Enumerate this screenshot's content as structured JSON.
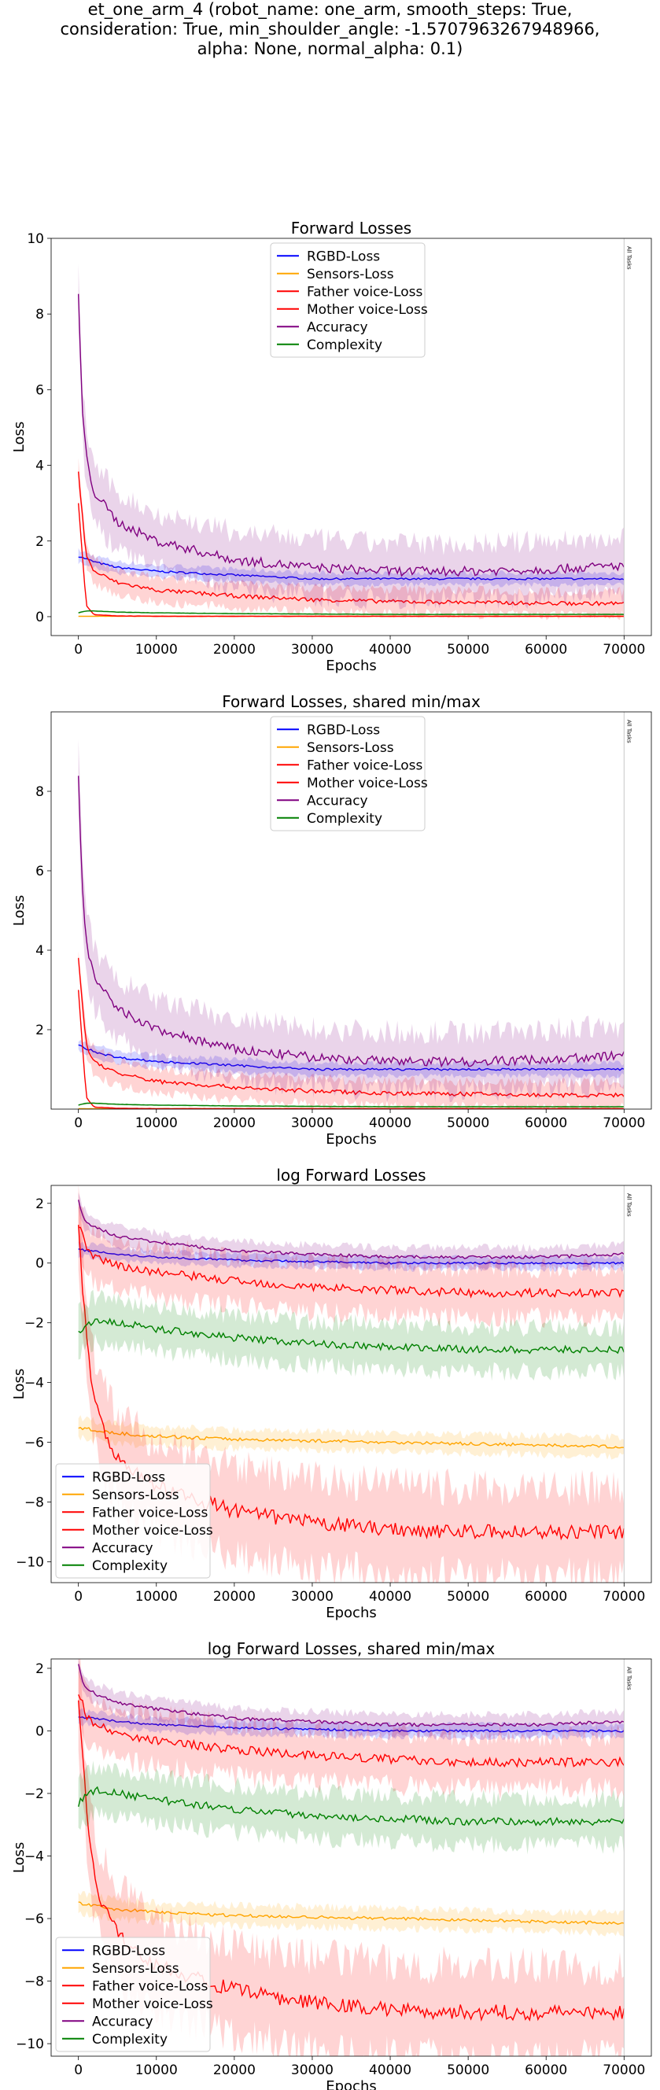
{
  "figure": {
    "suptitle_lines": [
      "et_one_arm_4 (robot_name: one_arm, smooth_steps: True,",
      "consideration: True, min_shoulder_angle: -1.5707963267948966,",
      "alpha: None, normal_alpha: 0.1)"
    ]
  },
  "series_styles": [
    {
      "name": "RGBD-Loss",
      "color": "#0000ff"
    },
    {
      "name": "Sensors-Loss",
      "color": "#ffa500"
    },
    {
      "name": "Father voice-Loss",
      "color": "#ff0000"
    },
    {
      "name": "Mother voice-Loss",
      "color": "#ff0000"
    },
    {
      "name": "Accuracy",
      "color": "#800080"
    },
    {
      "name": "Complexity",
      "color": "#008000"
    }
  ],
  "chart_data": [
    {
      "type": "line",
      "title": "Forward Losses",
      "xlabel": "Epochs",
      "ylabel": "Loss",
      "xlim": [
        -3500,
        73500
      ],
      "ylim": [
        -0.5,
        10
      ],
      "xticks": [
        0,
        10000,
        20000,
        30000,
        40000,
        50000,
        60000,
        70000
      ],
      "yticks": [
        0,
        2,
        4,
        6,
        8,
        10
      ],
      "legend": "upper-center",
      "vline": {
        "x": 70000,
        "label": "All Tasks"
      },
      "series": [
        {
          "name": "RGBD-Loss",
          "x": [
            0,
            2000,
            5000,
            10000,
            20000,
            30000,
            40000,
            50000,
            60000,
            70000
          ],
          "y": [
            1.6,
            1.45,
            1.3,
            1.2,
            1.1,
            1.0,
            1.0,
            1.0,
            1.0,
            1.0
          ],
          "band": 0.15
        },
        {
          "name": "Sensors-Loss",
          "x": [
            0,
            2000,
            5000,
            10000,
            20000,
            30000,
            40000,
            50000,
            60000,
            70000
          ],
          "y": [
            0.01,
            0.01,
            0.01,
            0.01,
            0.01,
            0.01,
            0.01,
            0.01,
            0.01,
            0.01
          ],
          "band": 0.01
        },
        {
          "name": "Father voice-Loss",
          "x": [
            0,
            1000,
            2000,
            5000,
            10000,
            20000,
            30000,
            40000,
            50000,
            60000,
            70000
          ],
          "y": [
            3.0,
            0.3,
            0.05,
            0.02,
            0.01,
            0.01,
            0.01,
            0.01,
            0.01,
            0.01,
            0.01
          ],
          "band": 0.02
        },
        {
          "name": "Mother voice-Loss",
          "x": [
            0,
            1000,
            2000,
            5000,
            10000,
            20000,
            30000,
            40000,
            50000,
            60000,
            70000
          ],
          "y": [
            3.8,
            1.6,
            1.2,
            0.9,
            0.7,
            0.55,
            0.45,
            0.4,
            0.38,
            0.35,
            0.35
          ],
          "band": 0.3
        },
        {
          "name": "Accuracy",
          "x": [
            0,
            500,
            1000,
            2000,
            5000,
            10000,
            20000,
            30000,
            40000,
            50000,
            60000,
            70000
          ],
          "y": [
            8.5,
            5.5,
            4.2,
            3.3,
            2.5,
            2.0,
            1.5,
            1.3,
            1.2,
            1.2,
            1.25,
            1.35
          ],
          "band": 0.7
        },
        {
          "name": "Complexity",
          "x": [
            0,
            1000,
            2000,
            5000,
            10000,
            20000,
            30000,
            40000,
            50000,
            60000,
            70000
          ],
          "y": [
            0.1,
            0.15,
            0.15,
            0.12,
            0.1,
            0.08,
            0.07,
            0.06,
            0.06,
            0.06,
            0.06
          ],
          "band": 0.02
        }
      ]
    },
    {
      "type": "line",
      "title": "Forward Losses, shared min/max",
      "xlabel": "Epochs",
      "ylabel": "Loss",
      "xlim": [
        -3500,
        73500
      ],
      "ylim": [
        0,
        10
      ],
      "xticks": [
        0,
        10000,
        20000,
        30000,
        40000,
        50000,
        60000,
        70000
      ],
      "yticks": [
        2,
        4,
        6,
        8
      ],
      "legend": "upper-center",
      "vline": {
        "x": 70000,
        "label": "All Tasks"
      },
      "series": [
        {
          "name": "RGBD-Loss",
          "x": [
            0,
            2000,
            5000,
            10000,
            20000,
            30000,
            40000,
            50000,
            60000,
            70000
          ],
          "y": [
            1.6,
            1.45,
            1.3,
            1.2,
            1.1,
            1.0,
            1.0,
            1.0,
            1.0,
            1.0
          ],
          "band": 0.15
        },
        {
          "name": "Sensors-Loss",
          "x": [
            0,
            2000,
            5000,
            10000,
            20000,
            30000,
            40000,
            50000,
            60000,
            70000
          ],
          "y": [
            0.01,
            0.01,
            0.01,
            0.01,
            0.01,
            0.01,
            0.01,
            0.01,
            0.01,
            0.01
          ],
          "band": 0.01
        },
        {
          "name": "Father voice-Loss",
          "x": [
            0,
            1000,
            2000,
            5000,
            10000,
            20000,
            30000,
            40000,
            50000,
            60000,
            70000
          ],
          "y": [
            3.0,
            0.3,
            0.05,
            0.02,
            0.01,
            0.01,
            0.01,
            0.01,
            0.01,
            0.01,
            0.01
          ],
          "band": 0.02
        },
        {
          "name": "Mother voice-Loss",
          "x": [
            0,
            1000,
            2000,
            5000,
            10000,
            20000,
            30000,
            40000,
            50000,
            60000,
            70000
          ],
          "y": [
            3.8,
            1.6,
            1.2,
            0.9,
            0.7,
            0.55,
            0.45,
            0.4,
            0.38,
            0.35,
            0.35
          ],
          "band": 0.3
        },
        {
          "name": "Accuracy",
          "x": [
            0,
            500,
            1000,
            2000,
            5000,
            10000,
            20000,
            30000,
            40000,
            50000,
            60000,
            70000
          ],
          "y": [
            8.5,
            5.5,
            4.2,
            3.3,
            2.5,
            2.0,
            1.5,
            1.3,
            1.2,
            1.2,
            1.25,
            1.35
          ],
          "band": 0.7
        },
        {
          "name": "Complexity",
          "x": [
            0,
            1000,
            2000,
            5000,
            10000,
            20000,
            30000,
            40000,
            50000,
            60000,
            70000
          ],
          "y": [
            0.1,
            0.15,
            0.15,
            0.12,
            0.1,
            0.08,
            0.07,
            0.06,
            0.06,
            0.06,
            0.06
          ],
          "band": 0.02
        }
      ]
    },
    {
      "type": "line",
      "title": "log Forward Losses",
      "xlabel": "Epochs",
      "ylabel": "Loss",
      "xlim": [
        -3500,
        73500
      ],
      "ylim": [
        -10.7,
        2.6
      ],
      "xticks": [
        0,
        10000,
        20000,
        30000,
        40000,
        50000,
        60000,
        70000
      ],
      "yticks": [
        2,
        0,
        -2,
        -4,
        -6,
        -8,
        -10
      ],
      "legend": "lower-left",
      "vline": {
        "x": 70000,
        "label": "All Tasks"
      },
      "series": [
        {
          "name": "RGBD-Loss",
          "x": [
            0,
            2000,
            5000,
            10000,
            20000,
            30000,
            40000,
            50000,
            60000,
            70000
          ],
          "y": [
            0.45,
            0.4,
            0.3,
            0.2,
            0.1,
            0.05,
            0.0,
            0.0,
            0.0,
            0.0
          ],
          "band": 0.2
        },
        {
          "name": "Sensors-Loss",
          "x": [
            0,
            2000,
            5000,
            10000,
            20000,
            30000,
            40000,
            50000,
            60000,
            70000
          ],
          "y": [
            -5.5,
            -5.6,
            -5.7,
            -5.8,
            -5.9,
            -5.95,
            -6.0,
            -6.05,
            -6.1,
            -6.15
          ],
          "band": 0.3
        },
        {
          "name": "Father voice-Loss",
          "x": [
            0,
            1000,
            2000,
            3000,
            5000,
            10000,
            20000,
            30000,
            40000,
            50000,
            60000,
            70000
          ],
          "y": [
            1.2,
            -2.5,
            -4.5,
            -5.5,
            -6.5,
            -7.5,
            -8.3,
            -8.7,
            -8.9,
            -9.0,
            -9.0,
            -9.0
          ],
          "band": 1.4
        },
        {
          "name": "Mother voice-Loss",
          "x": [
            0,
            1000,
            2000,
            5000,
            10000,
            20000,
            30000,
            40000,
            50000,
            60000,
            70000
          ],
          "y": [
            1.3,
            0.5,
            0.2,
            -0.1,
            -0.3,
            -0.6,
            -0.8,
            -0.9,
            -1.0,
            -1.0,
            -1.0
          ],
          "band": 0.8
        },
        {
          "name": "Accuracy",
          "x": [
            0,
            500,
            1000,
            2000,
            5000,
            10000,
            20000,
            30000,
            40000,
            50000,
            60000,
            70000
          ],
          "y": [
            2.1,
            1.6,
            1.4,
            1.2,
            0.9,
            0.7,
            0.4,
            0.3,
            0.2,
            0.2,
            0.2,
            0.3
          ],
          "band": 0.3
        },
        {
          "name": "Complexity",
          "x": [
            0,
            2000,
            5000,
            10000,
            20000,
            30000,
            40000,
            50000,
            60000,
            70000
          ],
          "y": [
            -2.3,
            -1.9,
            -2.0,
            -2.2,
            -2.5,
            -2.7,
            -2.8,
            -2.9,
            -2.9,
            -2.9
          ],
          "band": 0.7
        }
      ]
    },
    {
      "type": "line",
      "title": "log Forward Losses, shared min/max",
      "xlabel": "Epochs",
      "ylabel": "Loss",
      "xlim": [
        -3500,
        73500
      ],
      "ylim": [
        -10.4,
        2.3
      ],
      "xticks": [
        0,
        10000,
        20000,
        30000,
        40000,
        50000,
        60000,
        70000
      ],
      "yticks": [
        2,
        0,
        -2,
        -4,
        -6,
        -8,
        -10
      ],
      "legend": "lower-left",
      "vline": {
        "x": 70000,
        "label": "All Tasks"
      },
      "series": [
        {
          "name": "RGBD-Loss",
          "x": [
            0,
            2000,
            5000,
            10000,
            20000,
            30000,
            40000,
            50000,
            60000,
            70000
          ],
          "y": [
            0.45,
            0.4,
            0.3,
            0.2,
            0.1,
            0.05,
            0.0,
            0.0,
            0.0,
            0.0
          ],
          "band": 0.2
        },
        {
          "name": "Sensors-Loss",
          "x": [
            0,
            2000,
            5000,
            10000,
            20000,
            30000,
            40000,
            50000,
            60000,
            70000
          ],
          "y": [
            -5.5,
            -5.6,
            -5.7,
            -5.8,
            -5.9,
            -5.95,
            -6.0,
            -6.05,
            -6.1,
            -6.15
          ],
          "band": 0.3
        },
        {
          "name": "Father voice-Loss",
          "x": [
            0,
            1000,
            2000,
            3000,
            5000,
            10000,
            20000,
            30000,
            40000,
            50000,
            60000,
            70000
          ],
          "y": [
            1.2,
            -2.5,
            -4.5,
            -5.5,
            -6.5,
            -7.5,
            -8.3,
            -8.7,
            -8.9,
            -9.0,
            -9.0,
            -9.0
          ],
          "band": 1.4
        },
        {
          "name": "Mother voice-Loss",
          "x": [
            0,
            1000,
            2000,
            5000,
            10000,
            20000,
            30000,
            40000,
            50000,
            60000,
            70000
          ],
          "y": [
            1.3,
            0.5,
            0.2,
            -0.1,
            -0.3,
            -0.6,
            -0.8,
            -0.9,
            -1.0,
            -1.0,
            -1.0
          ],
          "band": 0.8
        },
        {
          "name": "Accuracy",
          "x": [
            0,
            500,
            1000,
            2000,
            5000,
            10000,
            20000,
            30000,
            40000,
            50000,
            60000,
            70000
          ],
          "y": [
            2.1,
            1.6,
            1.4,
            1.2,
            0.9,
            0.7,
            0.4,
            0.3,
            0.2,
            0.2,
            0.2,
            0.3
          ],
          "band": 0.3
        },
        {
          "name": "Complexity",
          "x": [
            0,
            2000,
            5000,
            10000,
            20000,
            30000,
            40000,
            50000,
            60000,
            70000
          ],
          "y": [
            -2.3,
            -1.9,
            -2.0,
            -2.2,
            -2.5,
            -2.7,
            -2.8,
            -2.9,
            -2.9,
            -2.9
          ],
          "band": 0.7
        }
      ]
    }
  ]
}
